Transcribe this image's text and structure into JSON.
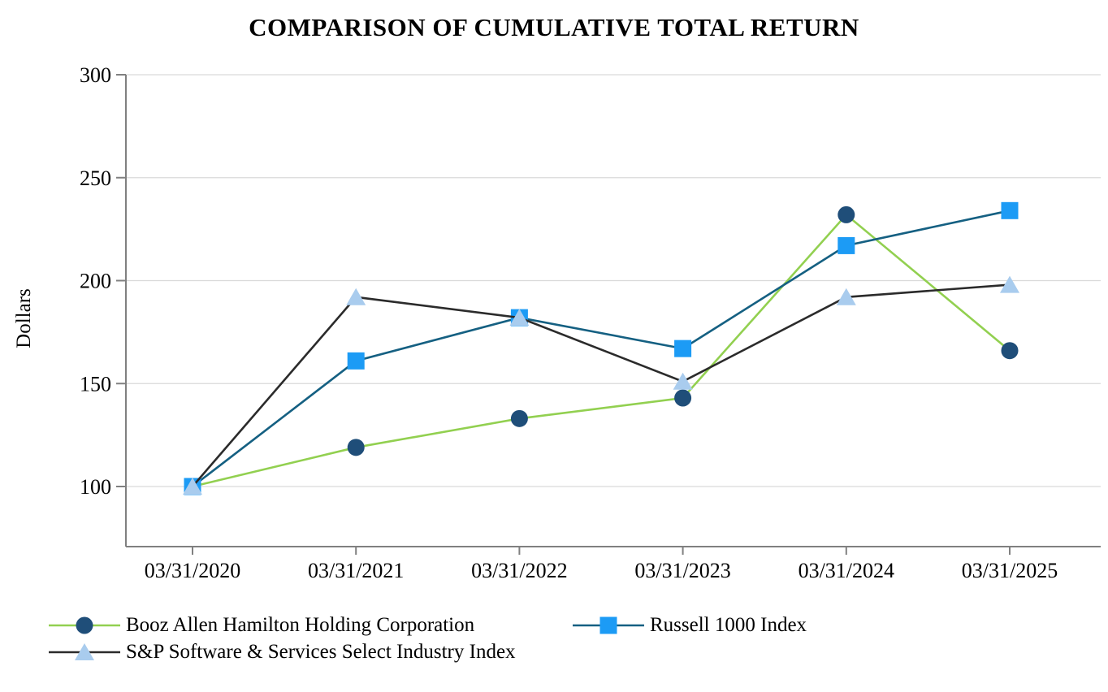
{
  "chart_data": {
    "type": "line",
    "title": "COMPARISON OF CUMULATIVE TOTAL RETURN",
    "xlabel": "",
    "ylabel": "Dollars",
    "categories": [
      "03/31/2020",
      "03/31/2021",
      "03/31/2022",
      "03/31/2023",
      "03/31/2024",
      "03/31/2025"
    ],
    "series": [
      {
        "name": "Booz Allen Hamilton Holding Corporation",
        "values": [
          100,
          119,
          133,
          143,
          232,
          166
        ],
        "line_color": "#92D050",
        "marker": "circle",
        "marker_color": "#1F4E79"
      },
      {
        "name": "Russell 1000 Index",
        "values": [
          100,
          161,
          182,
          167,
          217,
          234
        ],
        "line_color": "#156082",
        "marker": "square",
        "marker_color": "#1C9BF5"
      },
      {
        "name": "S&P Software & Services Select Industry Index",
        "values": [
          100,
          192,
          182,
          151,
          192,
          198
        ],
        "line_color": "#2B2B2B",
        "marker": "triangle",
        "marker_color": "#A9CCEE"
      }
    ],
    "y_ticks": [
      100,
      150,
      200,
      250,
      300
    ],
    "ylim": [
      70,
      300
    ],
    "grid": "horizontal",
    "legend_position": "bottom",
    "axis_color": "#808080",
    "gridline_color": "#D9D9D9",
    "text_color": "#000000"
  }
}
